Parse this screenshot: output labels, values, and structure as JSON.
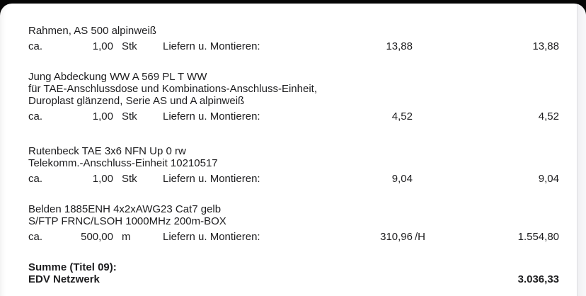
{
  "page": {
    "frame_color": "#060606",
    "sheet_color": "#ffffff",
    "gutter_color": "#f0f0f3",
    "text_color": "#1d1d1f"
  },
  "document": {
    "items": [
      {
        "description_lines": [
          "Rahmen, AS 500 alpinweiß"
        ],
        "qty_label": "ca.",
        "quantity": "1,00",
        "unit": "Stk",
        "service": "Liefern u. Montieren:",
        "unit_price": "13,88",
        "price_suffix": "",
        "total": "13,88"
      },
      {
        "description_lines": [
          "Jung Abdeckung WW A 569 PL T WW",
          "für TAE-Anschlussdose und Kombinations-Anschluss-Einheit,",
          "Duroplast glänzend, Serie AS und A alpinweiß"
        ],
        "qty_label": "ca.",
        "quantity": "1,00",
        "unit": "Stk",
        "service": "Liefern u. Montieren:",
        "unit_price": "4,52",
        "price_suffix": "",
        "total": "4,52"
      },
      {
        "description_lines": [
          "Rutenbeck TAE 3x6 NFN Up 0 rw",
          "Telekomm.-Anschluss-Einheit 10210517"
        ],
        "qty_label": "ca.",
        "quantity": "1,00",
        "unit": "Stk",
        "service": "Liefern u. Montieren:",
        "unit_price": "9,04",
        "price_suffix": "",
        "total": "9,04"
      },
      {
        "description_lines": [
          "Belden 1885ENH 4x2xAWG23 Cat7 gelb",
          "S/FTP FRNC/LSOH 1000MHz 200m-BOX"
        ],
        "qty_label": "ca.",
        "quantity": "500,00",
        "unit": "m",
        "service": "Liefern u. Montieren:",
        "unit_price": "310,96",
        "price_suffix": "/H",
        "total": "1.554,80"
      }
    ],
    "summary": {
      "label_line1": "Summe (Titel 09):",
      "label_line2": "EDV Netzwerk",
      "total": "3.036,33"
    }
  }
}
